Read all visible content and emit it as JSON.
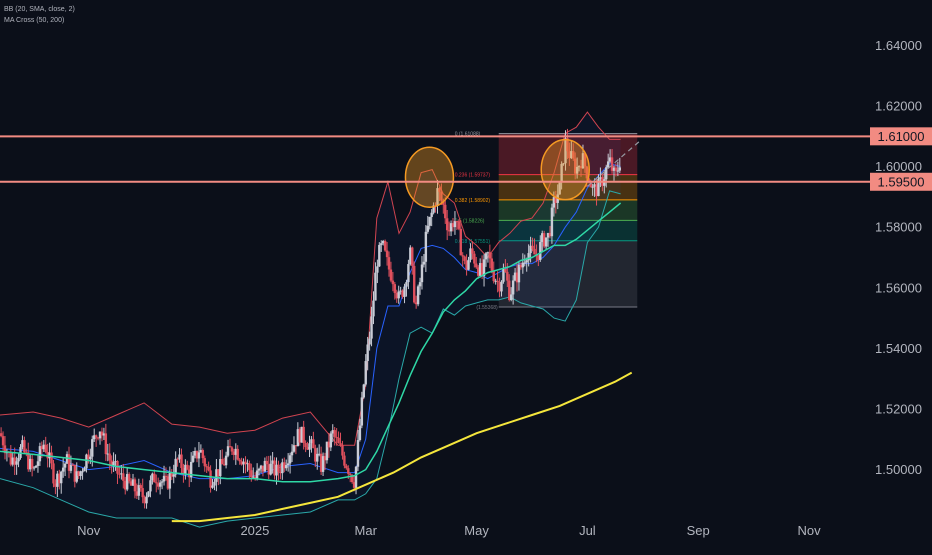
{
  "indicators": {
    "bb_label": "BB (20, SMA, close, 2)",
    "ma_label": "MA Cross (50, 200)"
  },
  "colors": {
    "background": "#0b0f19",
    "up_candle": "#c9ccd6",
    "down_candle": "#e0505d",
    "bb_upper": "#d14450",
    "bb_lower": "#2aa8a8",
    "bb_basis": "#2962ff",
    "ma50": "#2fd8a6",
    "ma200": "#f5e63c",
    "resistance": "#f28b82",
    "price_tag": "#f28b82",
    "circle": "#f59a23",
    "axis_text": "#b2b5be"
  },
  "chart_data": {
    "type": "line",
    "title": "",
    "ylim": [
      1.485,
      1.655
    ],
    "y_ticks": [
      "1.64000",
      "1.62000",
      "1.60000",
      "1.58000",
      "1.56000",
      "1.54000",
      "1.52000",
      "1.50000"
    ],
    "y_tick_values": [
      1.64,
      1.62,
      1.6,
      1.58,
      1.56,
      1.54,
      1.52,
      1.5
    ],
    "x_ticks": [
      "Nov",
      "2025",
      "Mar",
      "May",
      "Jul",
      "Sep",
      "Nov"
    ],
    "x_tick_positions": [
      0.5,
      3.5,
      5.5,
      7.5,
      9.5,
      11.5,
      13.5
    ],
    "xlim": [
      -1.1,
      14.6
    ],
    "price_levels": [
      {
        "label": "1.61000",
        "value": 1.61
      },
      {
        "label": "1.59500",
        "value": 1.595
      }
    ],
    "fibonacci": {
      "x_start": 7.9,
      "x_end": 10.4,
      "levels": [
        {
          "ratio": "0",
          "label": "0 (1.61088)",
          "value": 1.61088,
          "color": "#9598a1"
        },
        {
          "ratio": "0.236",
          "label": "0.236 (1.59737)",
          "value": 1.59737,
          "color": "#f23645"
        },
        {
          "ratio": "0.382",
          "label": "0.382 (1.58902)",
          "value": 1.58902,
          "color": "#ff9800"
        },
        {
          "ratio": "0.5",
          "label": "0.5 (1.58226)",
          "value": 1.58226,
          "color": "#4caf50"
        },
        {
          "ratio": "0.618",
          "label": "0.618 (1.57551)",
          "value": 1.57551,
          "color": "#089981"
        },
        {
          "ratio": "1",
          "label": "(1.55368)",
          "value": 1.55368,
          "color": "#787b86"
        }
      ]
    },
    "highlights": [
      {
        "x": 6.65,
        "y": 1.5965
      },
      {
        "x": 9.1,
        "y": 1.599
      }
    ],
    "trendline": {
      "x": [
        9.5,
        10.45
      ],
      "y": [
        1.5935,
        1.6085
      ]
    },
    "price_series": {
      "x": [
        -1.1,
        -0.9,
        -0.7,
        -0.5,
        -0.3,
        -0.1,
        0.1,
        0.3,
        0.5,
        0.7,
        0.9,
        1.1,
        1.3,
        1.5,
        1.7,
        1.9,
        2.1,
        2.3,
        2.5,
        2.7,
        2.9,
        3.1,
        3.3,
        3.5,
        3.7,
        3.9,
        4.1,
        4.3,
        4.5,
        4.7,
        4.9,
        5.1,
        5.3,
        5.5,
        5.6,
        5.7,
        5.8,
        5.9,
        6.0,
        6.1,
        6.2,
        6.3,
        6.4,
        6.5,
        6.6,
        6.7,
        6.8,
        6.9,
        7.0,
        7.1,
        7.2,
        7.3,
        7.4,
        7.5,
        7.6,
        7.7,
        7.8,
        7.9,
        8.0,
        8.1,
        8.2,
        8.3,
        8.4,
        8.5,
        8.6,
        8.7,
        8.8,
        8.9,
        9.0,
        9.1,
        9.2,
        9.3,
        9.4,
        9.5,
        9.6,
        9.7,
        9.8,
        9.9,
        10.0,
        10.1
      ],
      "y": [
        1.512,
        1.503,
        1.507,
        1.499,
        1.509,
        1.496,
        1.503,
        1.497,
        1.506,
        1.514,
        1.502,
        1.497,
        1.494,
        1.491,
        1.498,
        1.495,
        1.503,
        1.499,
        1.507,
        1.497,
        1.501,
        1.508,
        1.503,
        1.497,
        1.502,
        1.499,
        1.505,
        1.512,
        1.508,
        1.501,
        1.512,
        1.504,
        1.496,
        1.535,
        1.548,
        1.569,
        1.574,
        1.567,
        1.563,
        1.556,
        1.561,
        1.572,
        1.553,
        1.564,
        1.578,
        1.585,
        1.592,
        1.587,
        1.579,
        1.583,
        1.575,
        1.566,
        1.572,
        1.568,
        1.564,
        1.571,
        1.565,
        1.561,
        1.566,
        1.558,
        1.563,
        1.567,
        1.572,
        1.571,
        1.571,
        1.576,
        1.577,
        1.588,
        1.593,
        1.608,
        1.603,
        1.599,
        1.603,
        1.598,
        1.592,
        1.593,
        1.597,
        1.602,
        1.596,
        1.603
      ]
    },
    "series": [
      {
        "key": "bb_upper",
        "x": [
          -1.1,
          -0.5,
          0.0,
          0.5,
          1.0,
          1.5,
          2.0,
          2.5,
          3.0,
          3.5,
          4.0,
          4.5,
          5.0,
          5.3,
          5.5,
          5.7,
          5.9,
          6.1,
          6.3,
          6.5,
          6.7,
          6.9,
          7.1,
          7.3,
          7.5,
          7.7,
          7.9,
          8.1,
          8.3,
          8.5,
          8.7,
          8.9,
          9.1,
          9.3,
          9.5,
          9.7,
          9.9,
          10.1
        ],
        "y": [
          1.518,
          1.519,
          1.517,
          1.514,
          1.518,
          1.522,
          1.515,
          1.514,
          1.512,
          1.513,
          1.517,
          1.519,
          1.508,
          1.508,
          1.528,
          1.583,
          1.595,
          1.578,
          1.585,
          1.598,
          1.599,
          1.591,
          1.588,
          1.577,
          1.574,
          1.57,
          1.575,
          1.578,
          1.582,
          1.583,
          1.588,
          1.598,
          1.611,
          1.613,
          1.618,
          1.613,
          1.609,
          1.609
        ]
      },
      {
        "key": "bb_lower",
        "x": [
          -1.1,
          -0.5,
          0.0,
          0.5,
          1.0,
          1.5,
          2.0,
          2.5,
          3.0,
          3.5,
          4.0,
          4.5,
          5.0,
          5.3,
          5.5,
          5.7,
          5.9,
          6.1,
          6.3,
          6.5,
          6.7,
          6.9,
          7.1,
          7.3,
          7.5,
          7.7,
          7.9,
          8.1,
          8.3,
          8.5,
          8.7,
          8.9,
          9.1,
          9.3,
          9.5,
          9.7,
          9.9,
          10.1
        ],
        "y": [
          1.497,
          1.494,
          1.49,
          1.486,
          1.484,
          1.484,
          1.484,
          1.481,
          1.483,
          1.484,
          1.485,
          1.486,
          1.49,
          1.49,
          1.492,
          1.497,
          1.512,
          1.53,
          1.545,
          1.547,
          1.545,
          1.553,
          1.551,
          1.554,
          1.555,
          1.556,
          1.556,
          1.557,
          1.555,
          1.554,
          1.553,
          1.55,
          1.549,
          1.556,
          1.575,
          1.58,
          1.592,
          1.591
        ]
      },
      {
        "key": "bb_basis",
        "x": [
          -1.1,
          -0.5,
          0.0,
          0.5,
          1.0,
          1.5,
          2.0,
          2.5,
          3.0,
          3.5,
          4.0,
          4.5,
          5.0,
          5.3,
          5.5,
          5.7,
          5.9,
          6.1,
          6.3,
          6.5,
          6.7,
          6.9,
          7.1,
          7.3,
          7.5,
          7.7,
          7.9,
          8.1,
          8.3,
          8.5,
          8.7,
          8.9,
          9.1,
          9.3,
          9.5,
          9.7,
          9.9,
          10.1
        ],
        "y": [
          1.507,
          1.506,
          1.503,
          1.5,
          1.501,
          1.503,
          1.499,
          1.497,
          1.497,
          1.498,
          1.501,
          1.502,
          1.499,
          1.499,
          1.51,
          1.54,
          1.554,
          1.554,
          1.565,
          1.573,
          1.574,
          1.573,
          1.57,
          1.566,
          1.565,
          1.563,
          1.565,
          1.567,
          1.568,
          1.568,
          1.57,
          1.574,
          1.58,
          1.585,
          1.593,
          1.597,
          1.601,
          1.6
        ]
      },
      {
        "key": "ma50",
        "x": [
          -1.1,
          -0.5,
          0.0,
          0.5,
          1.0,
          1.5,
          2.0,
          2.5,
          3.0,
          3.5,
          4.0,
          4.5,
          5.0,
          5.3,
          5.5,
          5.7,
          5.9,
          6.1,
          6.3,
          6.5,
          6.7,
          6.9,
          7.1,
          7.3,
          7.5,
          7.7,
          7.9,
          8.1,
          8.3,
          8.5,
          8.7,
          8.9,
          9.1,
          9.3,
          9.5,
          9.7,
          9.9,
          10.1
        ],
        "y": [
          1.506,
          1.505,
          1.504,
          1.503,
          1.501,
          1.5,
          1.499,
          1.498,
          1.497,
          1.497,
          1.496,
          1.496,
          1.497,
          1.498,
          1.5,
          1.506,
          1.514,
          1.522,
          1.531,
          1.539,
          1.545,
          1.552,
          1.556,
          1.559,
          1.563,
          1.565,
          1.566,
          1.567,
          1.569,
          1.57,
          1.572,
          1.574,
          1.574,
          1.576,
          1.579,
          1.582,
          1.585,
          1.588
        ]
      },
      {
        "key": "ma200",
        "x": [
          2.0,
          2.5,
          3.0,
          3.5,
          4.0,
          4.5,
          5.0,
          5.5,
          6.0,
          6.5,
          7.0,
          7.5,
          8.0,
          8.5,
          9.0,
          9.5,
          10.0,
          10.3
        ],
        "y": [
          1.483,
          1.483,
          1.484,
          1.485,
          1.487,
          1.489,
          1.491,
          1.495,
          1.499,
          1.504,
          1.508,
          1.512,
          1.515,
          1.518,
          1.521,
          1.525,
          1.529,
          1.532
        ]
      }
    ]
  }
}
